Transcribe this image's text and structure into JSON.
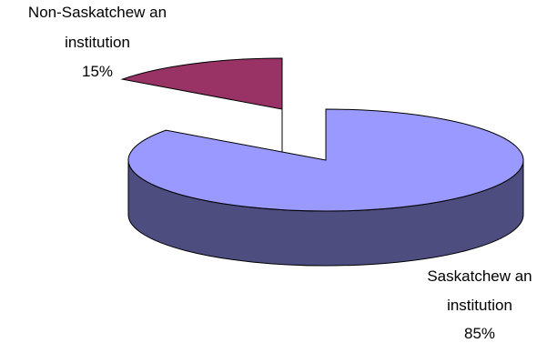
{
  "chart_data": {
    "type": "pie",
    "style": "3d-exploded",
    "title": "",
    "legend": "none",
    "slices": [
      {
        "label_lines": [
          "Saskatchew an",
          "institution",
          "85%"
        ],
        "value": 85,
        "top_color": "#9999ff",
        "side_color": "#4d4d80"
      },
      {
        "label_lines": [
          "Non-Saskatchew an",
          "institution",
          "15%"
        ],
        "value": 15,
        "top_color": "#993366",
        "side_color": "#4d1a33"
      }
    ]
  }
}
